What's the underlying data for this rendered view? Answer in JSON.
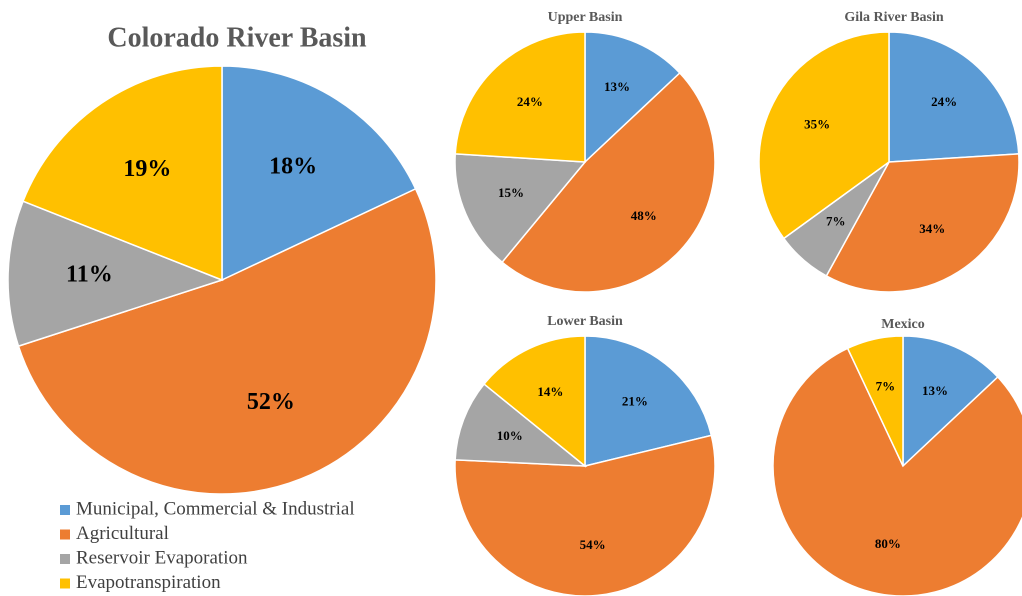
{
  "chart_data": [
    {
      "type": "pie",
      "title": "Colorado River Basin",
      "categories": [
        "Municipal, Commercial & Industrial",
        "Agricultural",
        "Reservoir Evaporation",
        "Evapotranspiration"
      ],
      "values": [
        18,
        52,
        11,
        19
      ],
      "value_labels": [
        "18%",
        "52%",
        "11%",
        "19%"
      ],
      "colors": [
        "#5b9bd5",
        "#ed7d31",
        "#a5a5a5",
        "#ffc000"
      ],
      "legend": "bottom-left"
    },
    {
      "type": "pie",
      "title": "Upper Basin",
      "values": [
        13,
        48,
        15,
        24
      ],
      "value_labels": [
        "13%",
        "48%",
        "15%",
        "24%"
      ],
      "colors": [
        "#5b9bd5",
        "#ed7d31",
        "#a5a5a5",
        "#ffc000"
      ]
    },
    {
      "type": "pie",
      "title": "Gila River Basin",
      "values": [
        24,
        34,
        7,
        35
      ],
      "value_labels": [
        "24%",
        "34%",
        "7%",
        "35%"
      ],
      "colors": [
        "#5b9bd5",
        "#ed7d31",
        "#a5a5a5",
        "#ffc000"
      ]
    },
    {
      "type": "pie",
      "title": "Lower Basin",
      "values": [
        21,
        54,
        10,
        14
      ],
      "value_labels": [
        "21%",
        "54%",
        "10%",
        "14%"
      ],
      "colors": [
        "#5b9bd5",
        "#ed7d31",
        "#a5a5a5",
        "#ffc000"
      ]
    },
    {
      "type": "pie",
      "title": "Mexico",
      "values": [
        13,
        80,
        null,
        7
      ],
      "value_labels": [
        "13%",
        "80%",
        null,
        "7%"
      ],
      "colors": [
        "#5b9bd5",
        "#ed7d31",
        "#a5a5a5",
        "#ffc000"
      ]
    }
  ]
}
